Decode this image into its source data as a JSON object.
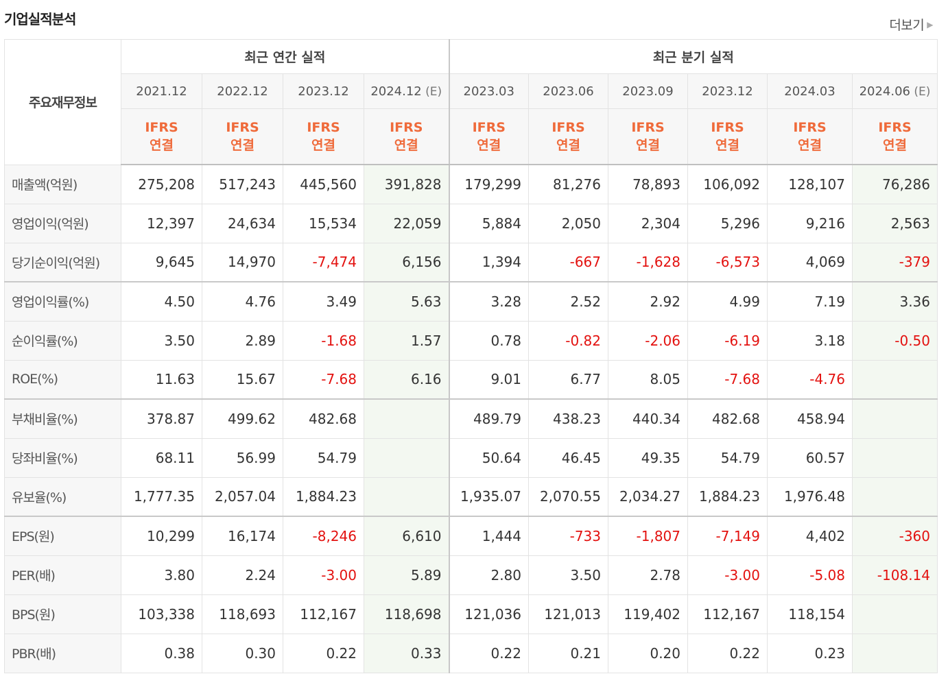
{
  "header": {
    "title": "기업실적분석",
    "more_label": "더보기"
  },
  "table": {
    "corner_label": "주요재무정보",
    "group_annual": "최근 연간 실적",
    "group_quarter": "최근 분기 실적",
    "periods": [
      "2021.12",
      "2022.12",
      "2023.12",
      "2024.12",
      "2023.03",
      "2023.06",
      "2023.09",
      "2023.12",
      "2024.03",
      "2024.06"
    ],
    "estimate_mark": "(E)",
    "ifrs_line1": "IFRS",
    "ifrs_line2": "연결",
    "rows": [
      {
        "label": "매출액(억원)",
        "values": [
          "275,208",
          "517,243",
          "445,560",
          "391,828",
          "179,299",
          "81,276",
          "78,893",
          "106,092",
          "128,107",
          "76,286"
        ]
      },
      {
        "label": "영업이익(억원)",
        "values": [
          "12,397",
          "24,634",
          "15,534",
          "22,059",
          "5,884",
          "2,050",
          "2,304",
          "5,296",
          "9,216",
          "2,563"
        ]
      },
      {
        "label": "당기순이익(억원)",
        "values": [
          "9,645",
          "14,970",
          "-7,474",
          "6,156",
          "1,394",
          "-667",
          "-1,628",
          "-6,573",
          "4,069",
          "-379"
        ]
      },
      {
        "label": "영업이익률(%)",
        "values": [
          "4.50",
          "4.76",
          "3.49",
          "5.63",
          "3.28",
          "2.52",
          "2.92",
          "4.99",
          "7.19",
          "3.36"
        ]
      },
      {
        "label": "순이익률(%)",
        "values": [
          "3.50",
          "2.89",
          "-1.68",
          "1.57",
          "0.78",
          "-0.82",
          "-2.06",
          "-6.19",
          "3.18",
          "-0.50"
        ]
      },
      {
        "label": "ROE(%)",
        "values": [
          "11.63",
          "15.67",
          "-7.68",
          "6.16",
          "9.01",
          "6.77",
          "8.05",
          "-7.68",
          "-4.76",
          ""
        ]
      },
      {
        "label": "부채비율(%)",
        "values": [
          "378.87",
          "499.62",
          "482.68",
          "",
          "489.79",
          "438.23",
          "440.34",
          "482.68",
          "458.94",
          ""
        ]
      },
      {
        "label": "당좌비율(%)",
        "values": [
          "68.11",
          "56.99",
          "54.79",
          "",
          "50.64",
          "46.45",
          "49.35",
          "54.79",
          "60.57",
          ""
        ]
      },
      {
        "label": "유보율(%)",
        "values": [
          "1,777.35",
          "2,057.04",
          "1,884.23",
          "",
          "1,935.07",
          "2,070.55",
          "2,034.27",
          "1,884.23",
          "1,976.48",
          ""
        ]
      },
      {
        "label": "EPS(원)",
        "values": [
          "10,299",
          "16,174",
          "-8,246",
          "6,610",
          "1,444",
          "-733",
          "-1,807",
          "-7,149",
          "4,402",
          "-360"
        ]
      },
      {
        "label": "PER(배)",
        "values": [
          "3.80",
          "2.24",
          "-3.00",
          "5.89",
          "2.80",
          "3.50",
          "2.78",
          "-3.00",
          "-5.08",
          "-108.14"
        ]
      },
      {
        "label": "BPS(원)",
        "values": [
          "103,338",
          "118,693",
          "112,167",
          "118,698",
          "121,036",
          "121,013",
          "119,402",
          "112,167",
          "118,154",
          ""
        ]
      },
      {
        "label": "PBR(배)",
        "values": [
          "0.38",
          "0.30",
          "0.22",
          "0.33",
          "0.22",
          "0.21",
          "0.20",
          "0.22",
          "0.23",
          ""
        ]
      }
    ],
    "colors": {
      "negative": "#e3110f",
      "ifrs": "#ef6a3a",
      "estimate_bg": "#f3f8f1"
    }
  }
}
